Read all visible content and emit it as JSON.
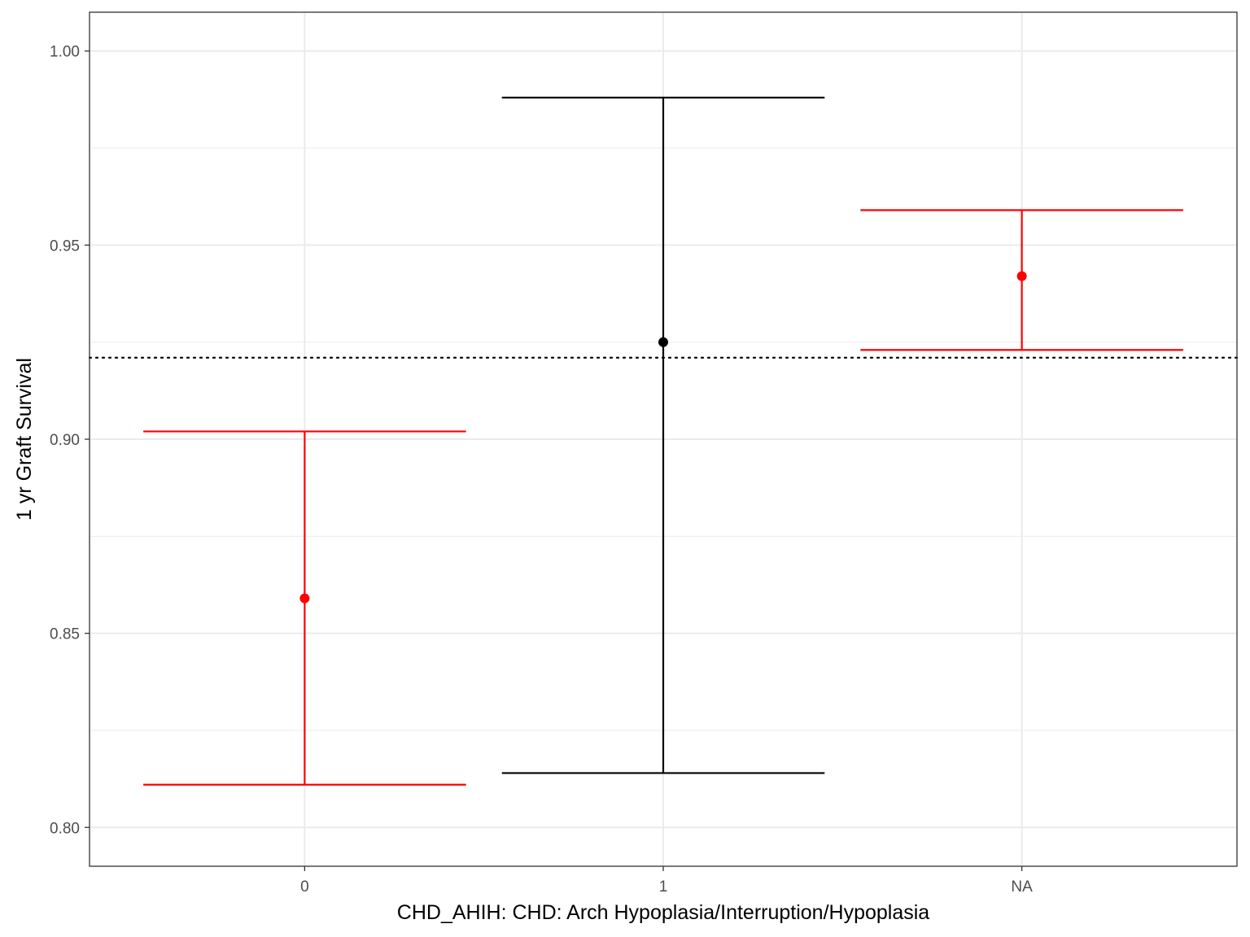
{
  "chart_data": {
    "type": "errorbar",
    "title": "",
    "xlabel": "CHD_AHIH: CHD: Arch Hypoplasia/Interruption/Hypoplasia",
    "ylabel": "1 yr Graft Survival",
    "categories": [
      "0",
      "1",
      "NA"
    ],
    "points": [
      {
        "category": "0",
        "estimate": 0.859,
        "lower": 0.811,
        "upper": 0.902,
        "color": "#ff0000"
      },
      {
        "category": "1",
        "estimate": 0.925,
        "lower": 0.814,
        "upper": 0.988,
        "color": "#000000"
      },
      {
        "category": "NA",
        "estimate": 0.942,
        "lower": 0.923,
        "upper": 0.959,
        "color": "#ff0000"
      }
    ],
    "reference_line": {
      "y": 0.921,
      "style": "dotted",
      "color": "#000000"
    },
    "ylim": [
      0.79,
      1.01
    ],
    "yticks": [
      "0.80",
      "0.85",
      "0.90",
      "0.95",
      "1.00"
    ],
    "grid": true,
    "legend": "none"
  }
}
